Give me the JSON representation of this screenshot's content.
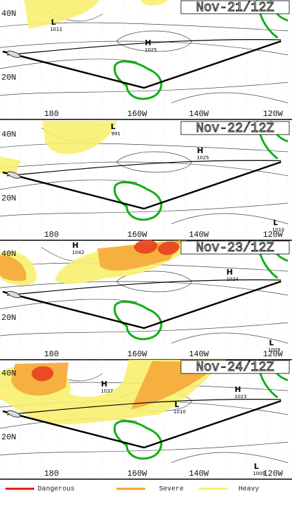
{
  "panels": [
    {
      "title": "Nov-21/12Z",
      "lat_labels": [
        "40N",
        "20N"
      ],
      "lon_labels": [
        "180",
        "160W",
        "140W",
        "120W"
      ],
      "centers": [
        {
          "symbol": "L",
          "value": "1011"
        },
        {
          "symbol": "H",
          "value": "1025"
        }
      ]
    },
    {
      "title": "Nov-22/12Z",
      "lat_labels": [
        "40N",
        "20N"
      ],
      "lon_labels": [
        "180",
        "160W",
        "140W",
        "120W"
      ],
      "centers": [
        {
          "symbol": "L",
          "value": "991"
        },
        {
          "symbol": "H",
          "value": "1025"
        },
        {
          "symbol": "L",
          "value": "1010"
        }
      ]
    },
    {
      "title": "Nov-23/12Z",
      "lat_labels": [
        "40N",
        "20N"
      ],
      "lon_labels": [
        "180",
        "160W",
        "140W",
        "120W"
      ],
      "centers": [
        {
          "symbol": "H",
          "value": "1042"
        },
        {
          "symbol": "H",
          "value": "1024"
        },
        {
          "symbol": "L",
          "value": "1009"
        }
      ]
    },
    {
      "title": "Nov-24/12Z",
      "lat_labels": [
        "40N",
        "20N"
      ],
      "lon_labels": [
        "180",
        "160W",
        "140W",
        "120W"
      ],
      "centers": [
        {
          "symbol": "H",
          "value": "1037"
        },
        {
          "symbol": "L",
          "value": "1010"
        },
        {
          "symbol": "H",
          "value": "1023"
        },
        {
          "symbol": "L",
          "value": "1009"
        }
      ]
    }
  ],
  "legend": [
    {
      "label": "Dangerous"
    },
    {
      "label": "Severe"
    },
    {
      "label": "Heavy"
    }
  ]
}
